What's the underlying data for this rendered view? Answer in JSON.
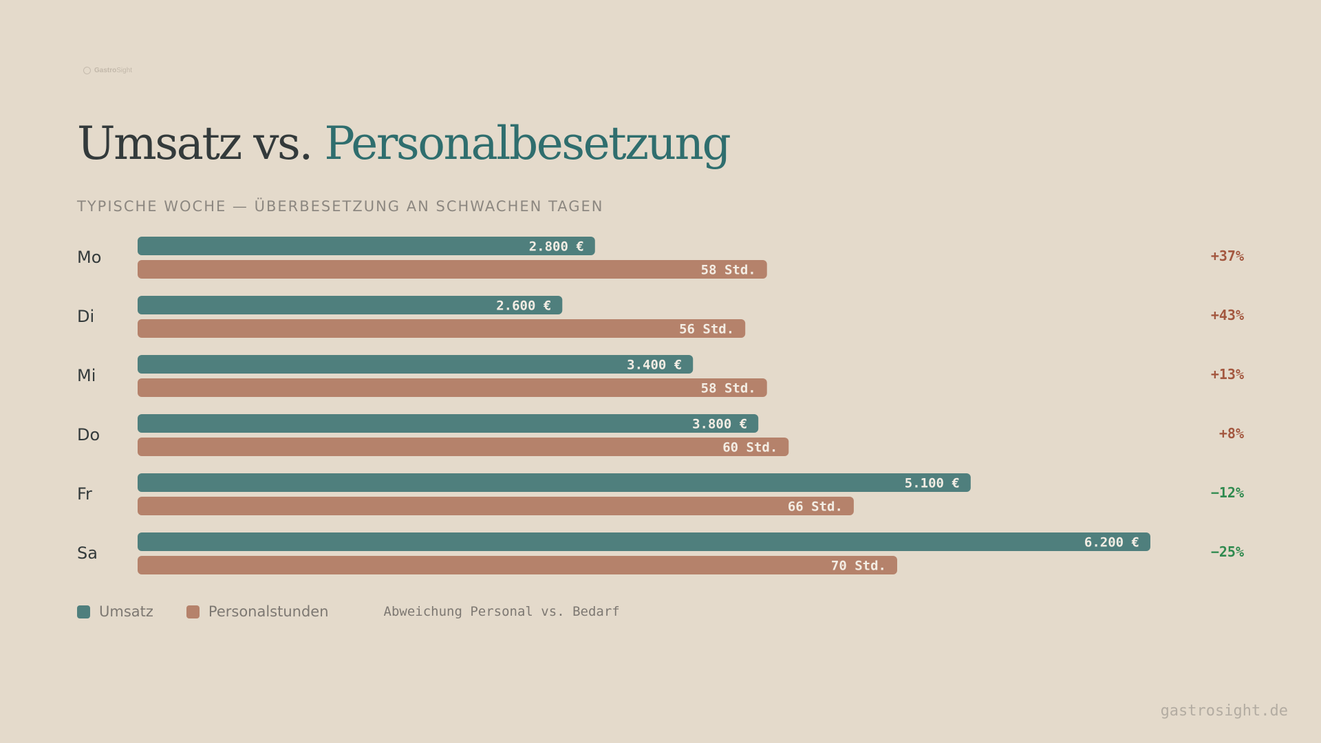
{
  "brand": {
    "name_bold": "Gastro",
    "name_light": "Sight"
  },
  "title": {
    "part1": "Umsatz vs.",
    "part2": "Personalbesetzung"
  },
  "subtitle": "TYPISCHE WOCHE — ÜBERBESETZUNG AN SCHWACHEN TAGEN",
  "colors": {
    "umsatz": "#4f7f7d",
    "personal": "#b5826b",
    "positive_deviation": "#a3573f",
    "negative_deviation": "#2f8a4f"
  },
  "chart_data": {
    "type": "bar",
    "orientation": "horizontal",
    "categories": [
      "Mo",
      "Di",
      "Mi",
      "Do",
      "Fr",
      "Sa"
    ],
    "series": [
      {
        "name": "Umsatz",
        "values": [
          2800,
          2600,
          3400,
          3800,
          5100,
          6200
        ],
        "labels": [
          "2.800 €",
          "2.600 €",
          "3.400 €",
          "3.800 €",
          "5.100 €",
          "6.200 €"
        ]
      },
      {
        "name": "Personalstunden",
        "values": [
          58,
          56,
          58,
          60,
          66,
          70
        ],
        "labels": [
          "58 Std.",
          "56 Std.",
          "58 Std.",
          "60 Std.",
          "66 Std.",
          "70 Std."
        ]
      }
    ],
    "deviation": {
      "name": "Abweichung Personal vs. Bedarf",
      "values": [
        37,
        43,
        13,
        8,
        -12,
        -25
      ],
      "labels": [
        "+37%",
        "+43%",
        "+13%",
        "+8%",
        "−12%",
        "−25%"
      ]
    },
    "legend_position": "bottom-left",
    "grid": false
  },
  "legend": {
    "umsatz": "Umsatz",
    "personal": "Personalstunden",
    "note": "Abweichung Personal vs. Bedarf"
  },
  "footer": "gastrosight.de"
}
